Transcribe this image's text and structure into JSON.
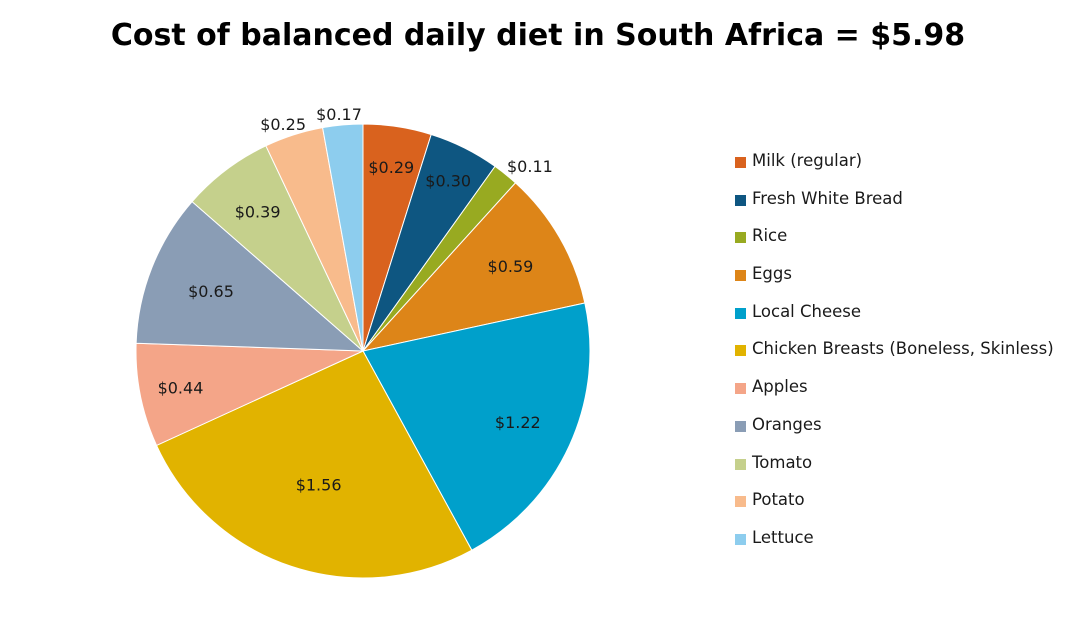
{
  "chart_data": {
    "type": "pie",
    "title": "Cost of balanced daily diet in South Africa = $5.98",
    "categories": [
      "Milk (regular)",
      "Fresh White Bread",
      "Rice",
      "Eggs",
      "Local Cheese",
      "Chicken Breasts (Boneless, Skinless)",
      "Apples",
      "Oranges",
      "Tomato",
      "Potato",
      "Lettuce"
    ],
    "values": [
      0.29,
      0.3,
      0.11,
      0.59,
      1.22,
      1.56,
      0.44,
      0.65,
      0.39,
      0.25,
      0.17
    ],
    "data_labels": [
      "$0.29",
      "$0.30",
      "$0.11",
      "$0.59",
      "$1.22",
      "$1.56",
      "$0.44",
      "$0.65",
      "$0.39",
      "$0.25",
      "$0.17"
    ],
    "colors": [
      "#D9621E",
      "#0E5681",
      "#98AA21",
      "#DD8518",
      "#00A0CB",
      "#E1B300",
      "#F4A588",
      "#8A9DB5",
      "#C5D08C",
      "#F8BB8C",
      "#8DCDEE"
    ],
    "legend_position": "right"
  }
}
